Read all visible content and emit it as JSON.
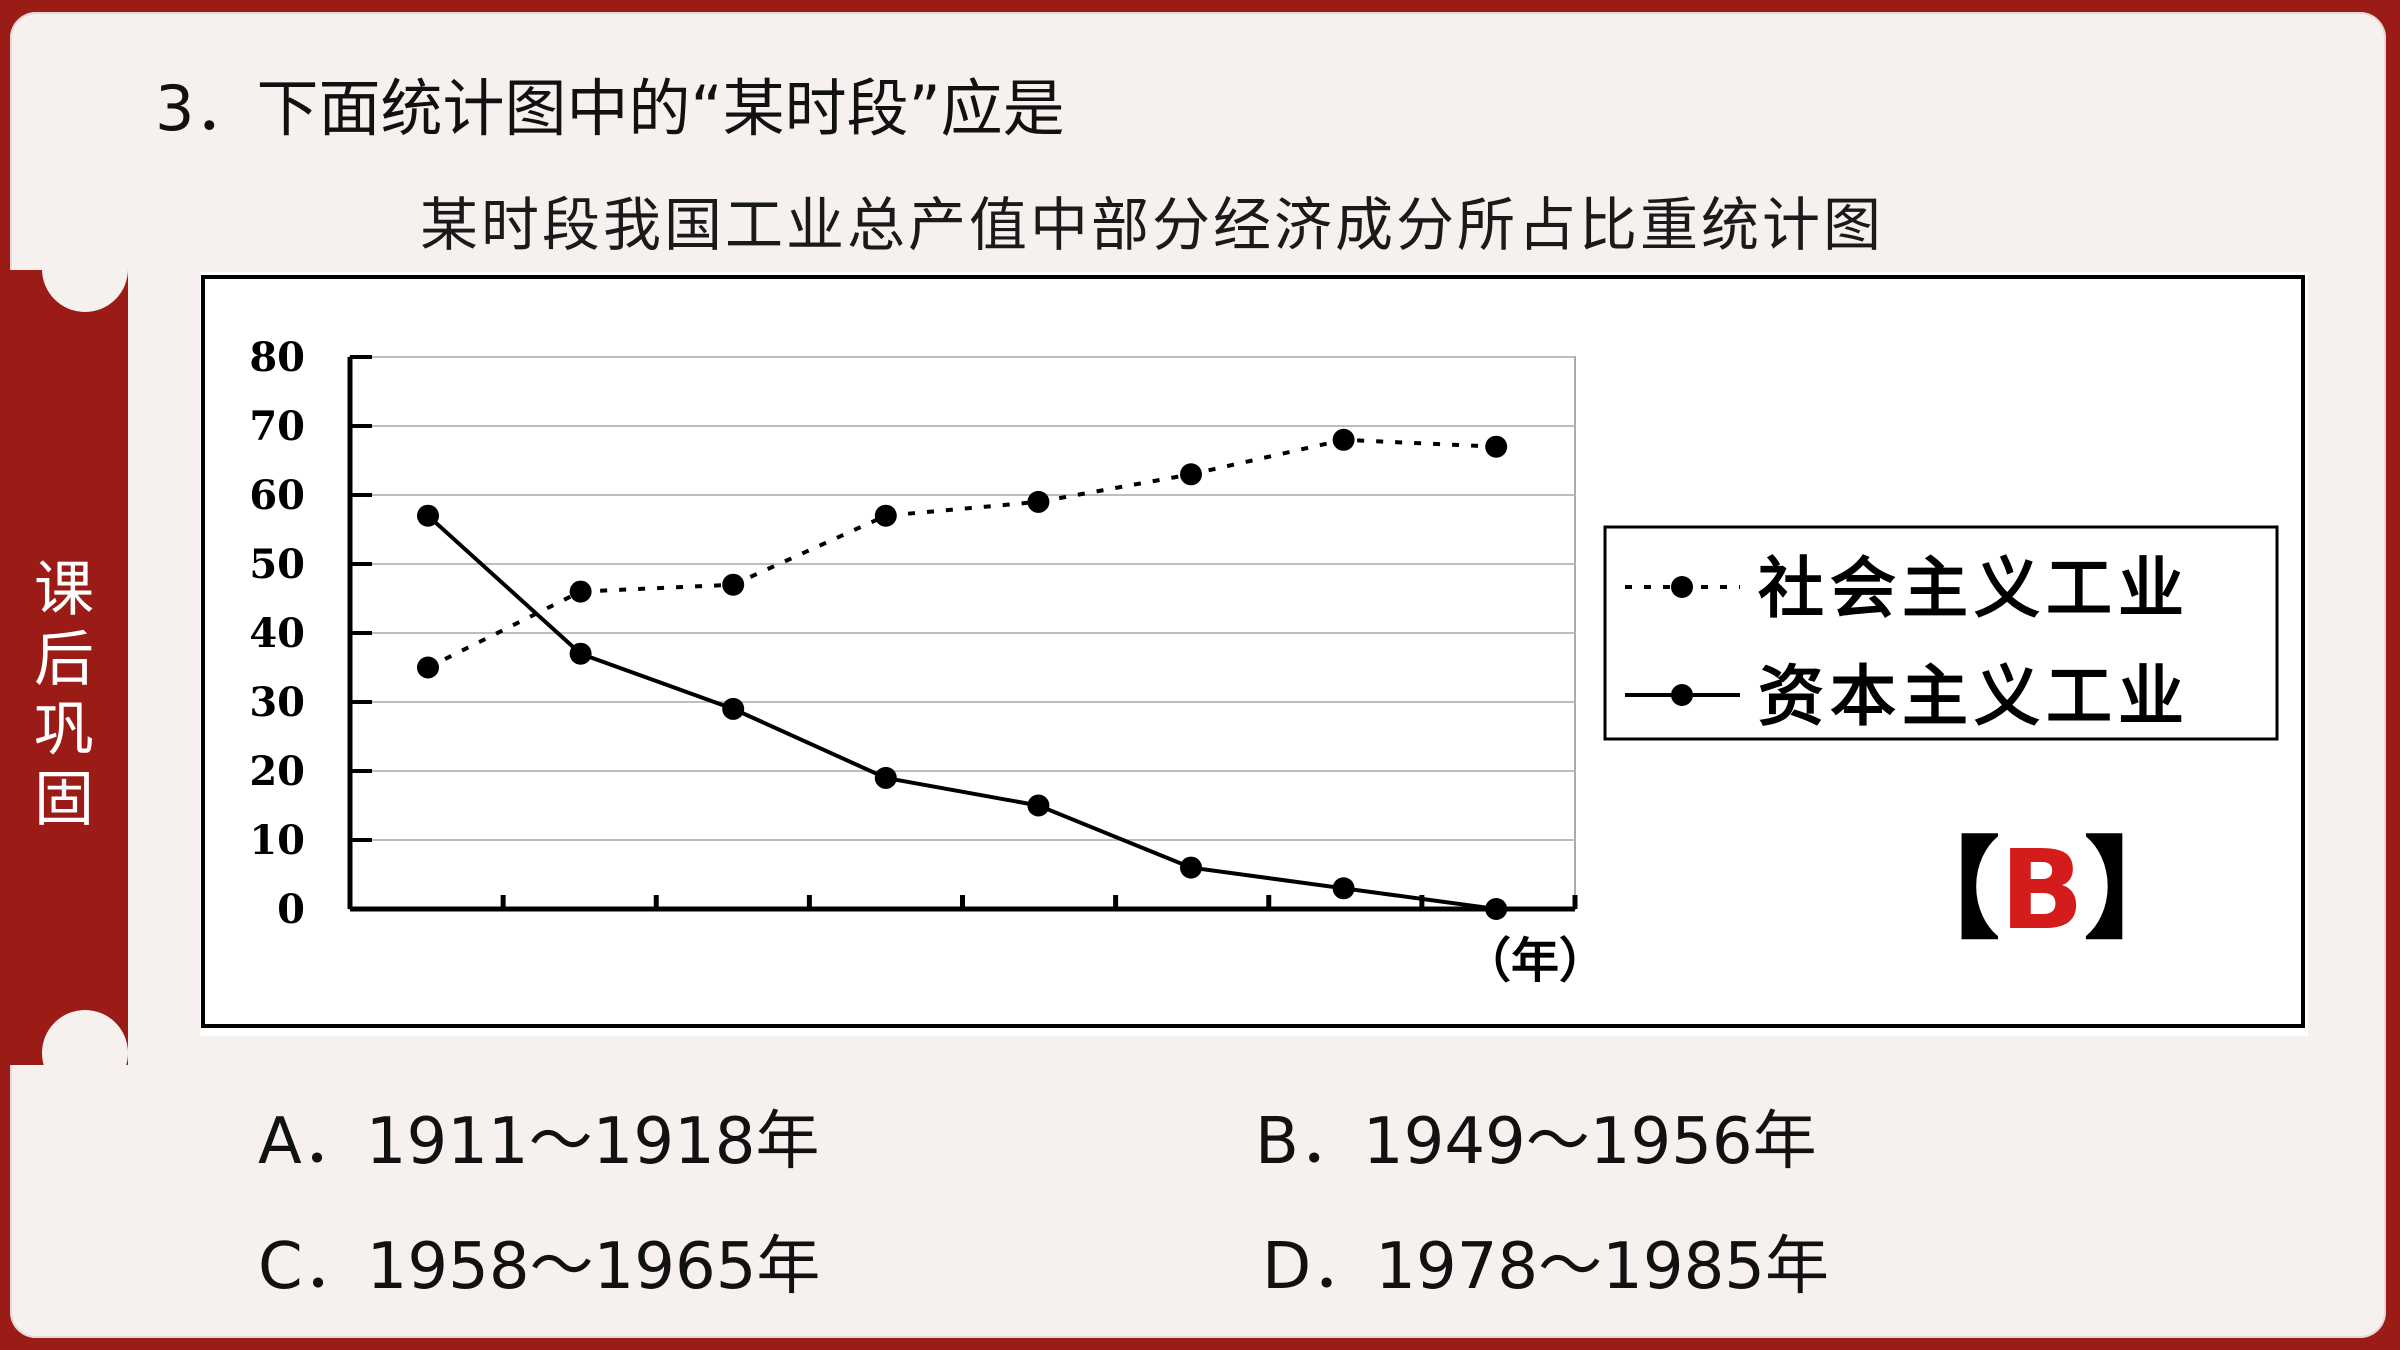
{
  "side_label": "课\n后\n巩\n固",
  "question": "3．下面统计图中的“某时段”应是",
  "answer": {
    "open": "【",
    "letter": "B",
    "close": "】"
  },
  "options": [
    {
      "id": "A",
      "text": "A．1911～1918年"
    },
    {
      "id": "B",
      "text": "B．1949～1956年"
    },
    {
      "id": "C",
      "text": "C．1958～1965年"
    },
    {
      "id": "D",
      "text": "D．1978～1985年"
    }
  ],
  "colors": {
    "accent": "#9b1c17",
    "answer": "#d51c1c"
  },
  "chart_data": {
    "type": "line",
    "title": "某时段我国工业总产值中部分经济成分所占比重统计图",
    "xlabel": "（年）",
    "ylabel": "",
    "ylim": [
      0,
      80
    ],
    "yticks": [
      "0",
      "10",
      "20",
      "30",
      "40",
      "50",
      "60",
      "70",
      "80"
    ],
    "n_points": 8,
    "grid": true,
    "legend_position": "right",
    "series": [
      {
        "name": "社会主义工业",
        "style": "dotted",
        "values": [
          35,
          46,
          47,
          57,
          59,
          63,
          68,
          67
        ]
      },
      {
        "name": "资本主义工业",
        "style": "solid",
        "values": [
          57,
          37,
          29,
          19,
          15,
          6,
          3,
          0
        ]
      }
    ]
  }
}
